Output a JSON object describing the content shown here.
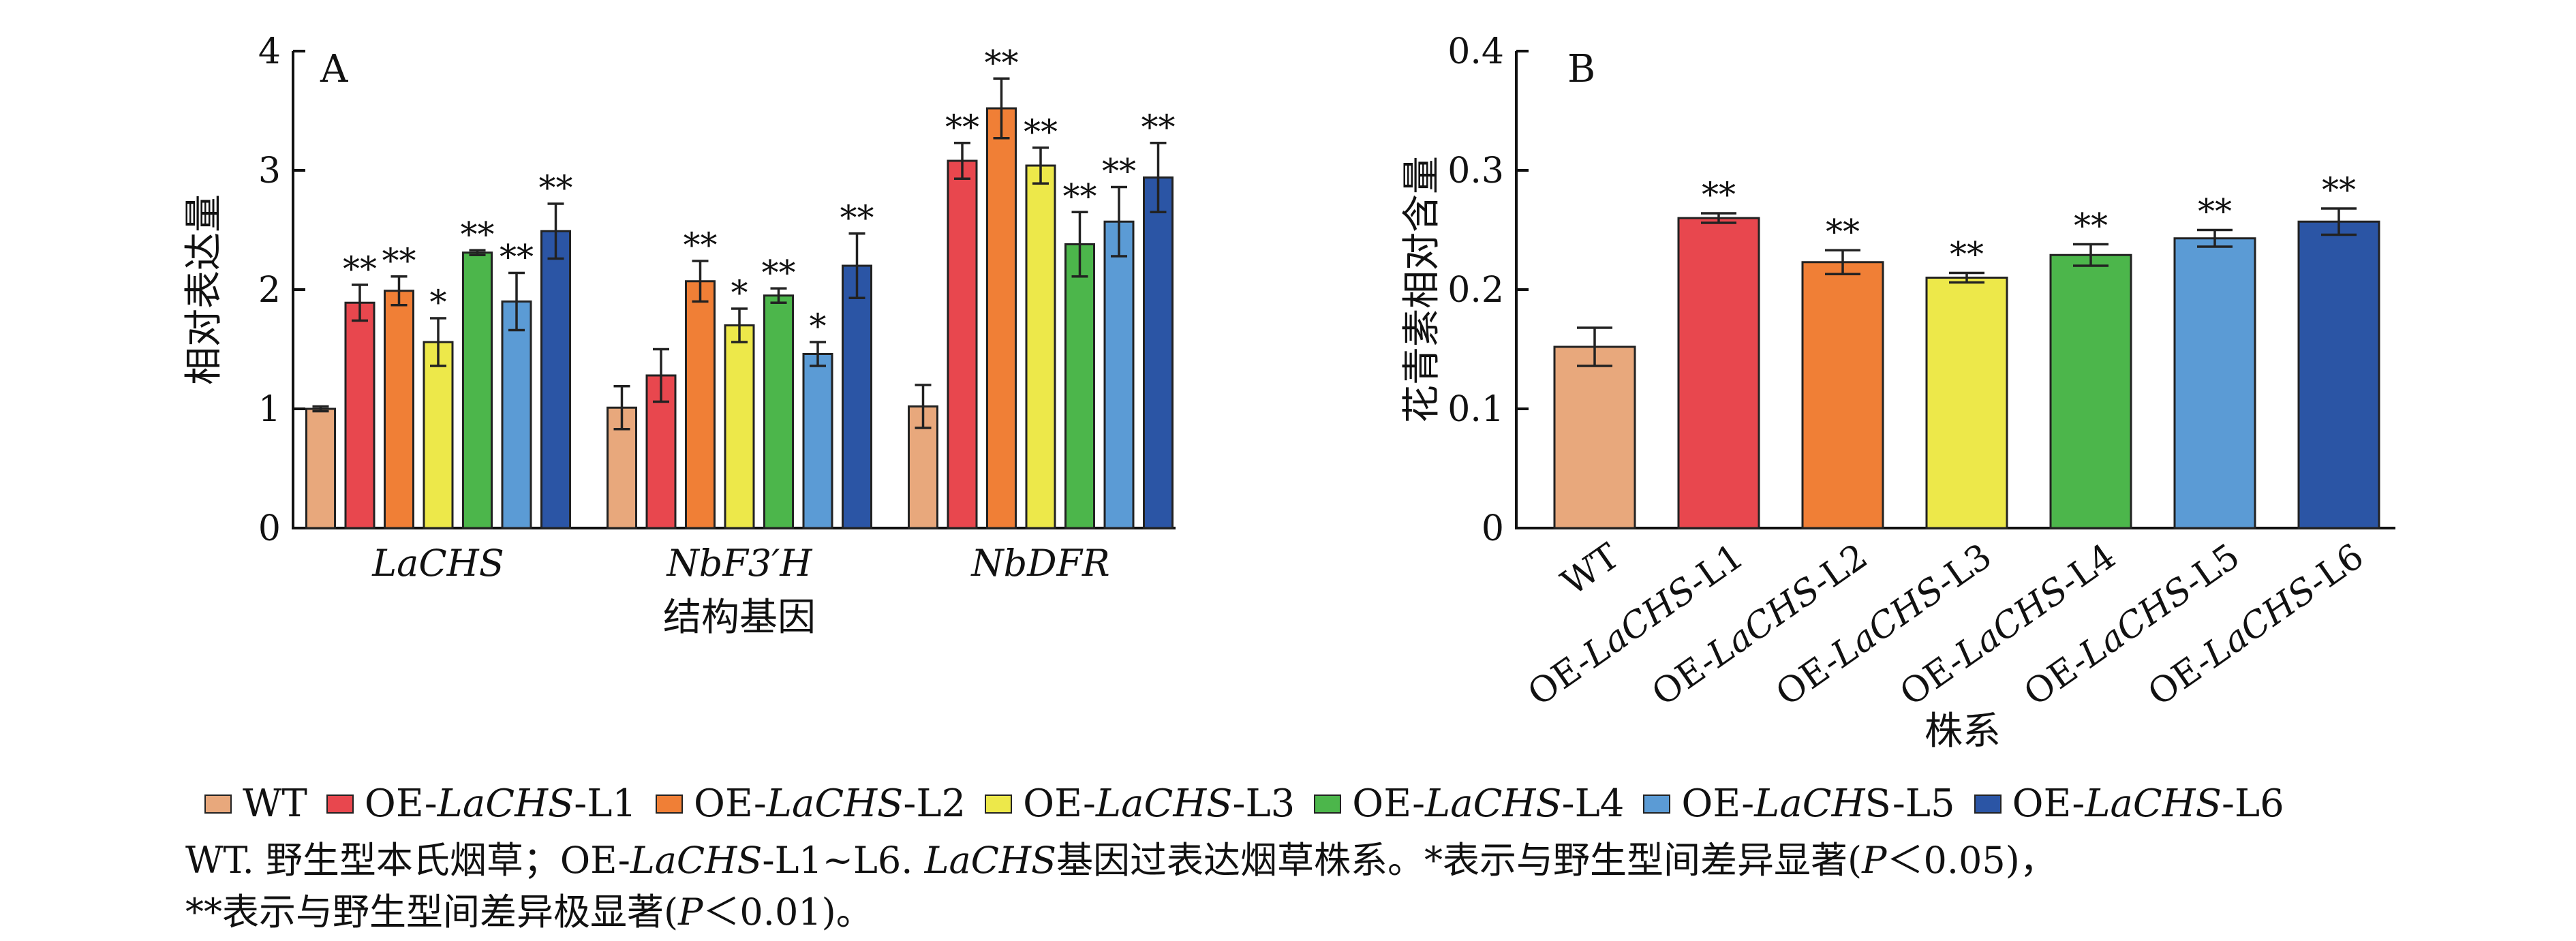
{
  "chart_data": [
    {
      "type": "bar",
      "panel_label": "A",
      "xlabel": "结构基因",
      "ylabel": "相对表达量",
      "ylim": [
        0,
        4
      ],
      "yticks": [
        "0",
        "1",
        "2",
        "3",
        "4"
      ],
      "categories": [
        "LaCHS",
        "NbF3′H",
        "NbDFR"
      ],
      "series": [
        {
          "name": "WT",
          "values": [
            1.0,
            1.01,
            1.02
          ],
          "errors": [
            0.02,
            0.18,
            0.18
          ],
          "significance": [
            "",
            "",
            ""
          ]
        },
        {
          "name": "OE-LaCHS-L1",
          "values": [
            1.89,
            1.28,
            3.08
          ],
          "errors": [
            0.15,
            0.22,
            0.15
          ],
          "significance": [
            "**",
            "",
            "**"
          ]
        },
        {
          "name": "OE-LaCHS-L2",
          "values": [
            1.99,
            2.07,
            3.52
          ],
          "errors": [
            0.12,
            0.17,
            0.25
          ],
          "significance": [
            "**",
            "**",
            "**"
          ]
        },
        {
          "name": "OE-LaCHS-L3",
          "values": [
            1.56,
            1.7,
            3.04
          ],
          "errors": [
            0.2,
            0.14,
            0.15
          ],
          "significance": [
            "*",
            "*",
            "**"
          ]
        },
        {
          "name": "OE-LaCHS-L4",
          "values": [
            2.31,
            1.95,
            2.38
          ],
          "errors": [
            0.02,
            0.06,
            0.27
          ],
          "significance": [
            "**",
            "**",
            "**"
          ]
        },
        {
          "name": "OE-LaCHS-L5",
          "values": [
            1.9,
            1.46,
            2.57
          ],
          "errors": [
            0.24,
            0.1,
            0.29
          ],
          "significance": [
            "**",
            "*",
            "**"
          ]
        },
        {
          "name": "OE-LaCHS-L6",
          "values": [
            2.49,
            2.2,
            2.94
          ],
          "errors": [
            0.23,
            0.27,
            0.29
          ],
          "significance": [
            "**",
            "**",
            "**"
          ]
        }
      ]
    },
    {
      "type": "bar",
      "panel_label": "B",
      "xlabel": "株系",
      "ylabel": "花青素相对含量",
      "ylim": [
        0,
        0.4
      ],
      "yticks": [
        "0",
        "0.1",
        "0.2",
        "0.3",
        "0.4"
      ],
      "categories": [
        "WT",
        "OE-LaCHS-L1",
        "OE-LaCHS-L2",
        "OE-LaCHS-L3",
        "OE-LaCHS-L4",
        "OE-LaCHS-L5",
        "OE-LaCHS-L6"
      ],
      "values": [
        0.152,
        0.26,
        0.223,
        0.21,
        0.229,
        0.243,
        0.257
      ],
      "errors": [
        0.016,
        0.004,
        0.01,
        0.004,
        0.009,
        0.007,
        0.011
      ],
      "significance": [
        "",
        "**",
        "**",
        "**",
        "**",
        "**",
        "**"
      ]
    }
  ],
  "colors": {
    "WT": "#E8A87C",
    "OE-LaCHS-L1": "#E8474E",
    "OE-LaCHS-L2": "#F07F36",
    "OE-LaCHS-L3": "#EDE84A",
    "OE-LaCHS-L4": "#4CB64B",
    "OE-LaCHS-L5": "#5B9BD5",
    "OE-LaCHS-L6": "#2B55A5"
  },
  "legend": [
    {
      "prefix": "WT",
      "italic": "",
      "suffix": ""
    },
    {
      "prefix": "OE-",
      "italic": "LaCHS",
      "suffix": "-L1"
    },
    {
      "prefix": "OE-",
      "italic": "LaCHS",
      "suffix": "-L2"
    },
    {
      "prefix": "OE-",
      "italic": "LaCHS",
      "suffix": "-L3"
    },
    {
      "prefix": "OE-",
      "italic": "LaCHS",
      "suffix": "-L4"
    },
    {
      "prefix": "OE-",
      "italic": "LaCH",
      "suffix": "S-L5"
    },
    {
      "prefix": "OE-",
      "italic": "LaCHS",
      "suffix": "-L6"
    }
  ],
  "caption": {
    "line1_a": "WT. 野生型本氏烟草；OE-",
    "line1_b": "LaCHS",
    "line1_c": "-L1~L6. ",
    "line1_d": "LaCHS",
    "line1_e": "基因过表达烟草株系。*表示与野生型间差异显著(",
    "line1_f": "P",
    "line1_g": "＜0.05)，",
    "line2_a": "**表示与野生型间差异极显著(",
    "line2_b": "P",
    "line2_c": "＜0.01)。"
  }
}
